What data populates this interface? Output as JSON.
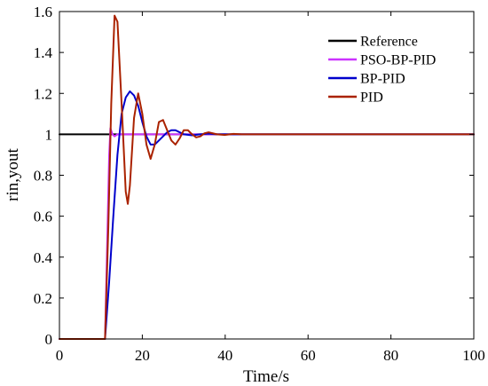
{
  "chart_data": {
    "type": "line",
    "title": "",
    "xlabel": "Time/s",
    "ylabel": "rin,yout",
    "xlim": [
      0,
      100
    ],
    "ylim": [
      0,
      1.6
    ],
    "x_ticks": [
      0,
      20,
      40,
      60,
      80,
      100
    ],
    "y_ticks": [
      0,
      0.2,
      0.4,
      0.6,
      0.8,
      1,
      1.2,
      1.4,
      1.6
    ],
    "grid": false,
    "legend_position": "top-right",
    "series": [
      {
        "name": "Reference",
        "color": "#000000",
        "x": [
          0,
          100
        ],
        "y": [
          1,
          1
        ]
      },
      {
        "name": "PSO-BP-PID",
        "color": "#cc33ff",
        "x": [
          0,
          11,
          11.5,
          12,
          12.3,
          12.8,
          13.3,
          14,
          15,
          17,
          100
        ],
        "y": [
          0,
          0,
          0.45,
          0.9,
          1.03,
          1.0,
          0.99,
          1.0,
          1.0,
          1.0,
          1.0
        ]
      },
      {
        "name": "BP-PID",
        "color": "#0000cc",
        "x": [
          0,
          11,
          12,
          13,
          14,
          15,
          16,
          17,
          18,
          19,
          20,
          21,
          22,
          23,
          24,
          25,
          26,
          27,
          28,
          29,
          30,
          32,
          34,
          36,
          38,
          40,
          45,
          100
        ],
        "y": [
          0,
          0,
          0.28,
          0.6,
          0.9,
          1.1,
          1.18,
          1.21,
          1.19,
          1.14,
          1.06,
          0.99,
          0.95,
          0.95,
          0.97,
          0.99,
          1.01,
          1.02,
          1.02,
          1.01,
          1.0,
          0.995,
          1.0,
          1.003,
          1.0,
          1.0,
          1.0,
          1.0
        ]
      },
      {
        "name": "PID",
        "color": "#aa2200",
        "x": [
          0,
          11,
          11.8,
          12.5,
          13.3,
          14,
          15,
          16,
          16.5,
          17,
          18,
          19,
          20,
          21,
          22,
          23,
          24,
          25,
          26,
          27,
          28,
          29,
          30,
          31,
          32,
          33,
          34,
          35,
          36,
          37,
          38,
          40,
          42,
          44,
          100
        ],
        "y": [
          0,
          0,
          0.55,
          1.15,
          1.58,
          1.55,
          1.15,
          0.72,
          0.66,
          0.75,
          1.08,
          1.2,
          1.1,
          0.95,
          0.88,
          0.95,
          1.06,
          1.07,
          1.02,
          0.97,
          0.95,
          0.98,
          1.02,
          1.02,
          1.0,
          0.985,
          0.99,
          1.005,
          1.01,
          1.005,
          1.0,
          0.997,
          1.002,
          1.0,
          1.0
        ]
      }
    ]
  }
}
